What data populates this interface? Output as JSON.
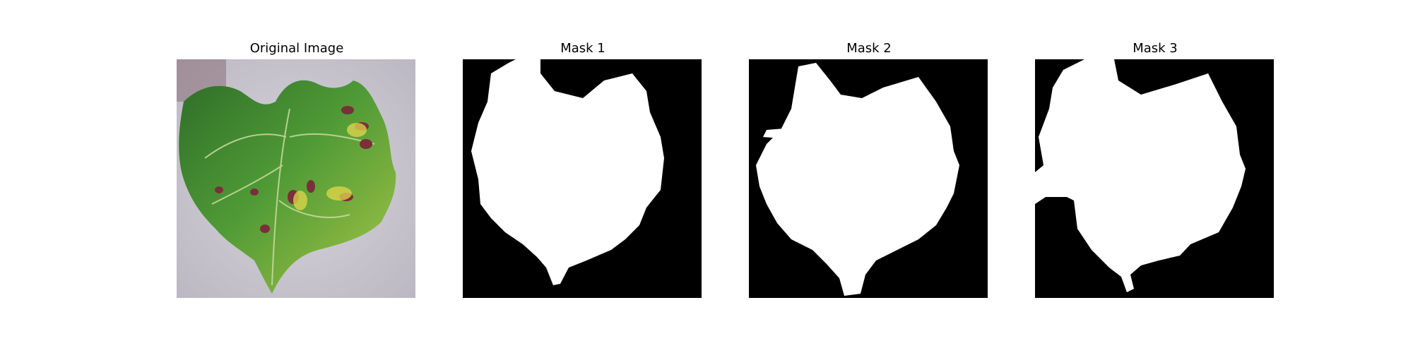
{
  "figure": {
    "panels": [
      {
        "title": "Original Image",
        "kind": "photo",
        "icon": "leaf-photo"
      },
      {
        "title": "Mask 1",
        "kind": "mask",
        "icon": "leaf-mask"
      },
      {
        "title": "Mask 2",
        "kind": "mask",
        "icon": "leaf-mask"
      },
      {
        "title": "Mask 3",
        "kind": "mask",
        "icon": "leaf-mask"
      }
    ],
    "colors": {
      "background": "#c9c6cf",
      "leaf": "#3f8a2f",
      "mask_background": "#000000",
      "mask_foreground": "#ffffff"
    }
  }
}
